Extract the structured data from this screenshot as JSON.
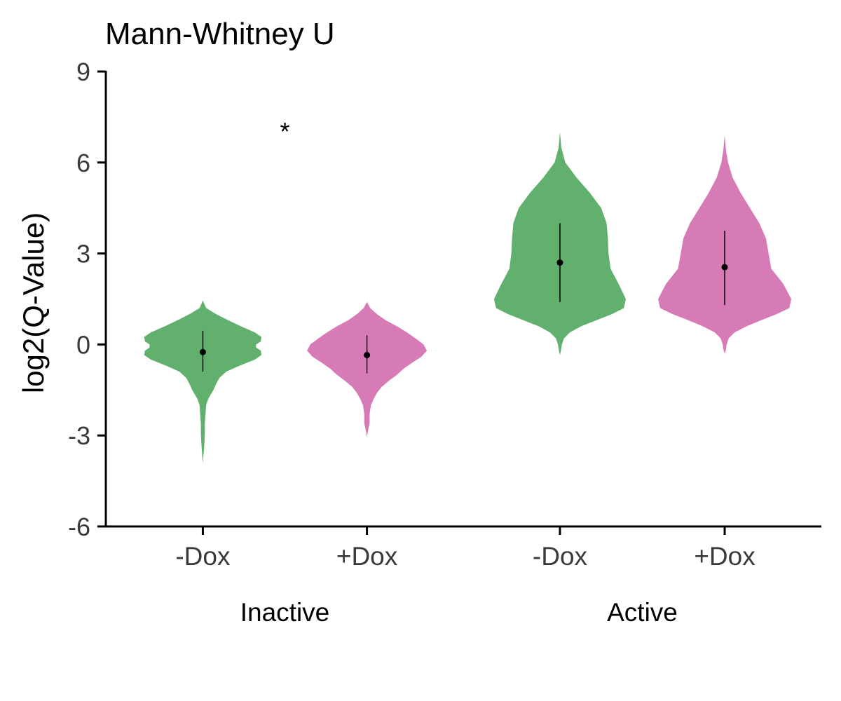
{
  "chart_data": {
    "type": "violin",
    "title": "Mann-Whitney U",
    "ylabel": "log2(Q-Value)",
    "xlabel": "",
    "ylim": [
      -6,
      9
    ],
    "yticks": [
      -6,
      -3,
      0,
      3,
      6,
      9
    ],
    "ytick_labels": [
      "-6",
      "-3",
      "0",
      "3",
      "6",
      "9"
    ],
    "grid": false,
    "legend": "none",
    "colors": {
      "-Dox": "#62b06e",
      "+Dox": "#d77bb6"
    },
    "groups": [
      {
        "label": "Inactive",
        "annotation": "*",
        "violins": [
          {
            "label": "-Dox",
            "color": "#62b06e",
            "median": -0.25,
            "lower": -0.9,
            "upper": 0.45,
            "density": [
              [
                1.45,
                0.0
              ],
              [
                1.2,
                0.05
              ],
              [
                1.0,
                0.2
              ],
              [
                0.8,
                0.38
              ],
              [
                0.6,
                0.57
              ],
              [
                0.4,
                0.78
              ],
              [
                0.25,
                0.88
              ],
              [
                0.1,
                0.87
              ],
              [
                0.0,
                0.8
              ],
              [
                -0.1,
                0.8
              ],
              [
                -0.2,
                0.87
              ],
              [
                -0.35,
                0.88
              ],
              [
                -0.5,
                0.78
              ],
              [
                -0.7,
                0.55
              ],
              [
                -0.9,
                0.35
              ],
              [
                -1.1,
                0.25
              ],
              [
                -1.3,
                0.2
              ],
              [
                -1.5,
                0.16
              ],
              [
                -1.8,
                0.08
              ],
              [
                -2.0,
                0.05
              ],
              [
                -2.3,
                0.04
              ],
              [
                -2.6,
                0.03
              ],
              [
                -2.9,
                0.03
              ],
              [
                -3.2,
                0.025
              ],
              [
                -3.5,
                0.015
              ],
              [
                -3.9,
                0.0
              ]
            ]
          },
          {
            "label": "+Dox",
            "color": "#d77bb6",
            "median": -0.35,
            "lower": -0.95,
            "upper": 0.3,
            "density": [
              [
                1.4,
                0.0
              ],
              [
                1.2,
                0.05
              ],
              [
                1.0,
                0.15
              ],
              [
                0.8,
                0.28
              ],
              [
                0.6,
                0.45
              ],
              [
                0.4,
                0.6
              ],
              [
                0.2,
                0.73
              ],
              [
                0.0,
                0.85
              ],
              [
                -0.2,
                0.9
              ],
              [
                -0.4,
                0.82
              ],
              [
                -0.6,
                0.68
              ],
              [
                -0.8,
                0.55
              ],
              [
                -1.0,
                0.45
              ],
              [
                -1.2,
                0.33
              ],
              [
                -1.4,
                0.22
              ],
              [
                -1.6,
                0.15
              ],
              [
                -1.8,
                0.1
              ],
              [
                -2.0,
                0.06
              ],
              [
                -2.3,
                0.04
              ],
              [
                -2.6,
                0.04
              ],
              [
                -2.8,
                0.02
              ],
              [
                -3.05,
                0.0
              ]
            ]
          }
        ]
      },
      {
        "label": "Active",
        "annotation": "",
        "violins": [
          {
            "label": "-Dox",
            "color": "#62b06e",
            "median": 2.7,
            "lower": 1.4,
            "upper": 4.0,
            "density": [
              [
                7.0,
                0.0
              ],
              [
                6.5,
                0.02
              ],
              [
                6.0,
                0.08
              ],
              [
                5.5,
                0.25
              ],
              [
                5.0,
                0.45
              ],
              [
                4.5,
                0.62
              ],
              [
                4.0,
                0.7
              ],
              [
                3.5,
                0.72
              ],
              [
                3.0,
                0.73
              ],
              [
                2.5,
                0.76
              ],
              [
                2.0,
                0.88
              ],
              [
                1.5,
                0.99
              ],
              [
                1.2,
                0.96
              ],
              [
                1.0,
                0.78
              ],
              [
                0.8,
                0.55
              ],
              [
                0.6,
                0.32
              ],
              [
                0.4,
                0.15
              ],
              [
                0.2,
                0.06
              ],
              [
                0.0,
                0.03
              ],
              [
                -0.2,
                0.015
              ],
              [
                -0.35,
                0.0
              ]
            ]
          },
          {
            "label": "+Dox",
            "color": "#d77bb6",
            "median": 2.55,
            "lower": 1.3,
            "upper": 3.75,
            "density": [
              [
                6.9,
                0.0
              ],
              [
                6.4,
                0.02
              ],
              [
                6.0,
                0.05
              ],
              [
                5.5,
                0.12
              ],
              [
                5.0,
                0.24
              ],
              [
                4.5,
                0.38
              ],
              [
                4.0,
                0.52
              ],
              [
                3.5,
                0.62
              ],
              [
                3.0,
                0.66
              ],
              [
                2.5,
                0.7
              ],
              [
                2.0,
                0.88
              ],
              [
                1.5,
                1.0
              ],
              [
                1.2,
                0.97
              ],
              [
                1.0,
                0.78
              ],
              [
                0.8,
                0.55
              ],
              [
                0.6,
                0.33
              ],
              [
                0.4,
                0.15
              ],
              [
                0.2,
                0.06
              ],
              [
                0.0,
                0.03
              ],
              [
                -0.2,
                0.015
              ],
              [
                -0.3,
                0.0
              ]
            ]
          }
        ]
      }
    ]
  }
}
